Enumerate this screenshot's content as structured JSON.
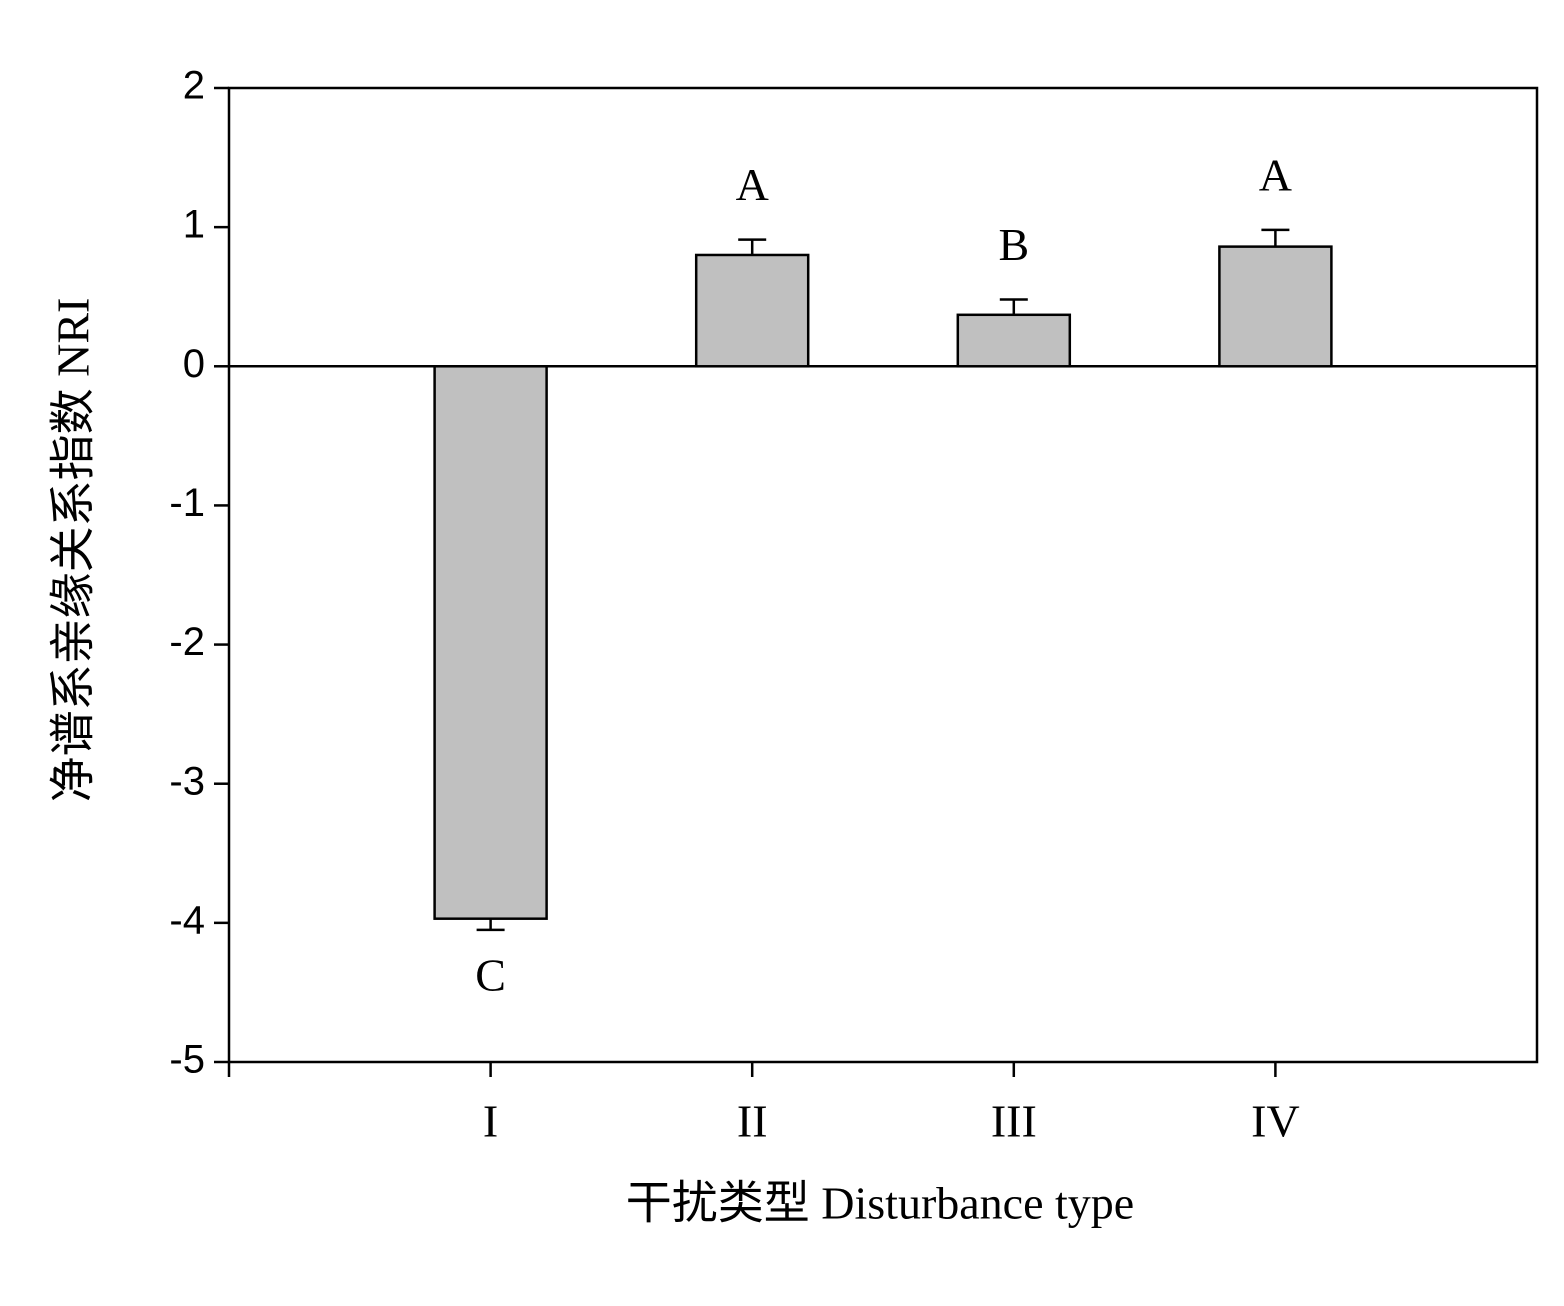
{
  "chart_data": {
    "type": "bar",
    "x_label": "干扰类型 Disturbance type",
    "y_label": "净谱系亲缘关系指数 NRI",
    "categories": [
      "I",
      "II",
      "III",
      "IV"
    ],
    "values": [
      -3.97,
      0.8,
      0.37,
      0.86
    ],
    "errors": [
      0.08,
      0.11,
      0.11,
      0.12
    ],
    "annotations": [
      "C",
      "A",
      "B",
      "A"
    ],
    "color": "#c0c0c0",
    "ylim": [
      -5,
      2
    ],
    "yticks": [
      -5,
      -4,
      -3,
      -2,
      -1,
      0,
      1,
      2
    ]
  }
}
